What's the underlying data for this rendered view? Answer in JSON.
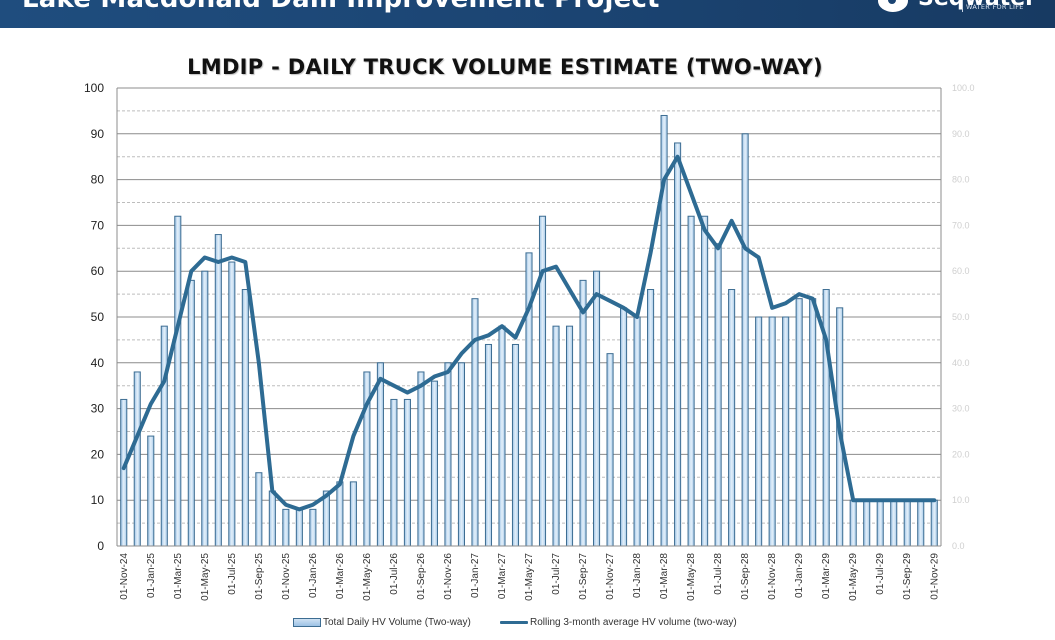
{
  "header": {
    "title": "Lake Macdonald Dam Improvement Project",
    "logo_word": "Seqwater",
    "logo_tagline": "WATER FOR LIFE"
  },
  "colors": {
    "header_bg": "#1b4472",
    "bar_fill_top": "#d6e7f6",
    "bar_fill_bottom": "#9cc2e5",
    "bar_stroke": "#3d6d92",
    "line": "#2e6b93",
    "grid_major": "#8c8c8c",
    "grid_minor": "#bdbdbd"
  },
  "chart_data": {
    "type": "bar",
    "title": "LMDIP - DAILY TRUCK VOLUME ESTIMATE (TWO-WAY)",
    "xlabel": "",
    "ylabel": "",
    "ylim": [
      0,
      100
    ],
    "y2lim": [
      0,
      100
    ],
    "grid": true,
    "legend_position": "bottom",
    "y_ticks": [
      "0",
      "10",
      "20",
      "30",
      "40",
      "50",
      "60",
      "70",
      "80",
      "90",
      "100"
    ],
    "y2_ticks": [
      "0.0",
      "10.0",
      "20.0",
      "30.0",
      "40.0",
      "50.0",
      "60.0",
      "70.0",
      "80.0",
      "90.0",
      "100.0"
    ],
    "x_tick_labels": [
      "01-Nov-24",
      "01-Jan-25",
      "01-Mar-25",
      "01-May-25",
      "01-Jul-25",
      "01-Sep-25",
      "01-Nov-25",
      "01-Jan-26",
      "01-Mar-26",
      "01-May-26",
      "01-Jul-26",
      "01-Sep-26",
      "01-Nov-26",
      "01-Jan-27",
      "01-Mar-27",
      "01-May-27",
      "01-Jul-27",
      "01-Sep-27",
      "01-Nov-27",
      "01-Jan-28",
      "01-Mar-28",
      "01-May-28",
      "01-Jul-28",
      "01-Sep-28",
      "01-Nov-28",
      "01-Jan-29",
      "01-Mar-29",
      "01-May-29",
      "01-Jul-29",
      "01-Sep-29",
      "01-Nov-29"
    ],
    "categories": [
      "Nov-24",
      "Dec-24",
      "Jan-25",
      "Feb-25",
      "Mar-25",
      "Apr-25",
      "May-25",
      "Jun-25",
      "Jul-25",
      "Aug-25",
      "Sep-25",
      "Oct-25",
      "Nov-25",
      "Dec-25",
      "Jan-26",
      "Feb-26",
      "Mar-26",
      "Apr-26",
      "May-26",
      "Jun-26",
      "Jul-26",
      "Aug-26",
      "Sep-26",
      "Oct-26",
      "Nov-26",
      "Dec-26",
      "Jan-27",
      "Feb-27",
      "Mar-27",
      "Apr-27",
      "May-27",
      "Jun-27",
      "Jul-27",
      "Aug-27",
      "Sep-27",
      "Oct-27",
      "Nov-27",
      "Dec-27",
      "Jan-28",
      "Feb-28",
      "Mar-28",
      "Apr-28",
      "May-28",
      "Jun-28",
      "Jul-28",
      "Aug-28",
      "Sep-28",
      "Oct-28",
      "Nov-28",
      "Dec-28",
      "Jan-29",
      "Feb-29",
      "Mar-29",
      "Apr-29",
      "May-29",
      "Jun-29",
      "Jul-29",
      "Aug-29",
      "Sep-29",
      "Oct-29",
      "Nov-29"
    ],
    "series": [
      {
        "name": "Total Daily HV Volume (Two-way)",
        "type": "bar",
        "values": [
          32,
          38,
          24,
          48,
          72,
          58,
          60,
          68,
          62,
          56,
          16,
          12,
          8,
          8,
          8,
          12,
          14,
          14,
          38,
          40,
          32,
          32,
          38,
          36,
          40,
          40,
          54,
          44,
          48,
          44,
          64,
          72,
          48,
          48,
          58,
          60,
          42,
          52,
          50,
          56,
          94,
          88,
          72,
          72,
          66,
          56,
          90,
          50,
          50,
          50,
          54,
          54,
          56,
          52,
          10,
          10,
          10,
          10,
          10,
          10,
          10
        ]
      },
      {
        "name": "Rolling 3-month average HV volume (two-way)",
        "type": "line",
        "values": [
          17,
          24,
          31,
          36,
          48,
          60,
          63,
          62,
          63,
          62,
          40,
          12,
          9,
          8,
          9,
          11,
          13.5,
          24,
          31,
          36.5,
          35,
          33.5,
          35,
          37,
          38,
          42,
          45,
          46,
          48,
          45.5,
          52,
          60,
          61,
          56,
          51,
          55,
          53.5,
          52,
          50,
          64,
          80,
          85,
          77,
          69,
          65,
          71,
          65,
          63,
          52,
          53,
          55,
          54,
          45,
          25,
          10,
          10,
          10,
          10,
          10,
          10,
          10
        ]
      }
    ]
  }
}
